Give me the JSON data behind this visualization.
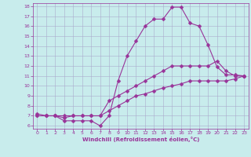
{
  "xlabel": "Windchill (Refroidissement éolien,°C)",
  "bg_color": "#c8ecec",
  "line_color": "#993399",
  "grid_color": "#aaaacc",
  "xlim": [
    -0.5,
    23.5
  ],
  "ylim": [
    5.7,
    18.3
  ],
  "xticks": [
    0,
    1,
    2,
    3,
    4,
    5,
    6,
    7,
    8,
    9,
    10,
    11,
    12,
    13,
    14,
    15,
    16,
    17,
    18,
    19,
    20,
    21,
    22,
    23
  ],
  "yticks": [
    6,
    7,
    8,
    9,
    10,
    11,
    12,
    13,
    14,
    15,
    16,
    17,
    18
  ],
  "line1_x": [
    0,
    1,
    2,
    3,
    4,
    5,
    6,
    7,
    8,
    9,
    10,
    11,
    12,
    13,
    14,
    15,
    16,
    17,
    18,
    19,
    20,
    21,
    22,
    23
  ],
  "line1_y": [
    7.2,
    7.0,
    7.0,
    6.5,
    6.5,
    6.5,
    6.5,
    6.0,
    7.0,
    10.5,
    13.0,
    14.5,
    16.0,
    16.7,
    16.7,
    17.9,
    17.9,
    16.3,
    16.0,
    14.1,
    11.9,
    11.1,
    11.1,
    11.0
  ],
  "line2_x": [
    0,
    1,
    2,
    3,
    4,
    5,
    6,
    7,
    8,
    9,
    10,
    11,
    12,
    13,
    14,
    15,
    16,
    17,
    18,
    19,
    20,
    21,
    22,
    23
  ],
  "line2_y": [
    7.0,
    7.0,
    7.0,
    6.8,
    7.0,
    7.0,
    7.0,
    7.0,
    8.5,
    9.0,
    9.5,
    10.0,
    10.5,
    11.0,
    11.5,
    12.0,
    12.0,
    12.0,
    12.0,
    12.0,
    12.5,
    11.5,
    11.0,
    11.0
  ],
  "line3_x": [
    0,
    1,
    2,
    3,
    4,
    5,
    6,
    7,
    8,
    9,
    10,
    11,
    12,
    13,
    14,
    15,
    16,
    17,
    18,
    19,
    20,
    21,
    22,
    23
  ],
  "line3_y": [
    7.0,
    7.0,
    7.0,
    7.0,
    7.0,
    7.0,
    7.0,
    7.0,
    7.5,
    8.0,
    8.5,
    9.0,
    9.2,
    9.5,
    9.8,
    10.0,
    10.2,
    10.5,
    10.5,
    10.5,
    10.5,
    10.5,
    10.7,
    11.0
  ],
  "tick_fontsize": 4.5,
  "xlabel_fontsize": 5.0,
  "marker_size": 2.5,
  "line_width": 0.8
}
